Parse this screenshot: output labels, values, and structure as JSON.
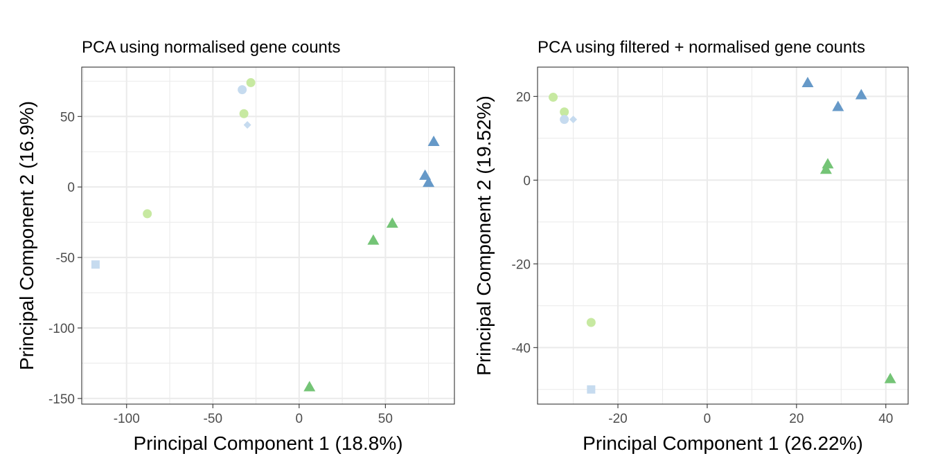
{
  "chart_data": [
    {
      "type": "scatter",
      "title": "PCA using normalised gene counts",
      "xlabel": "Principal Component 1 (18.8%)",
      "ylabel": "Principal Component 2 (16.9%)",
      "xlim": [
        -126,
        90
      ],
      "ylim": [
        -154,
        85
      ],
      "xticks": [
        -100,
        -50,
        0,
        50
      ],
      "yticks": [
        -150,
        -100,
        -50,
        0,
        50
      ],
      "xtick_labels": [
        "-100",
        "-50",
        "0",
        "50"
      ],
      "ytick_labels": [
        "-150",
        "-100",
        "-50",
        "0",
        "50"
      ],
      "grid": true,
      "points": [
        {
          "x": -33,
          "y": 69,
          "shape": "circle",
          "color": "#c6dbef"
        },
        {
          "x": -28,
          "y": 74,
          "shape": "circle",
          "color": "#c7e9a1"
        },
        {
          "x": -32,
          "y": 52,
          "shape": "circle",
          "color": "#c7e9a1"
        },
        {
          "x": -30,
          "y": 44,
          "shape": "diamond",
          "color": "#c6dbef"
        },
        {
          "x": -88,
          "y": -19,
          "shape": "circle",
          "color": "#c7e9a1"
        },
        {
          "x": -118,
          "y": -55,
          "shape": "square",
          "color": "#c6dbef"
        },
        {
          "x": 78,
          "y": 32,
          "shape": "triangle",
          "color": "#6699c8"
        },
        {
          "x": 73,
          "y": 8,
          "shape": "triangle",
          "color": "#6699c8"
        },
        {
          "x": 75,
          "y": 3,
          "shape": "triangle",
          "color": "#6699c8"
        },
        {
          "x": 54,
          "y": -26,
          "shape": "triangle",
          "color": "#74c476"
        },
        {
          "x": 43,
          "y": -38,
          "shape": "triangle",
          "color": "#74c476"
        },
        {
          "x": 6,
          "y": -142,
          "shape": "triangle",
          "color": "#74c476"
        }
      ]
    },
    {
      "type": "scatter",
      "title": "PCA using filtered + normalised gene counts",
      "xlabel": "Principal Component 1 (26.22%)",
      "ylabel": "Principal Component 2 (19.52%)",
      "xlim": [
        -38,
        45
      ],
      "ylim": [
        -53.5,
        27
      ],
      "xticks": [
        -20,
        0,
        20,
        40
      ],
      "yticks": [
        -40,
        -20,
        0,
        20
      ],
      "xtick_labels": [
        "-20",
        "0",
        "20",
        "40"
      ],
      "ytick_labels": [
        "-40",
        "-20",
        "0",
        "20"
      ],
      "grid": true,
      "points": [
        {
          "x": -34.5,
          "y": 19.8,
          "shape": "circle",
          "color": "#c7e9a1"
        },
        {
          "x": -32,
          "y": 16.3,
          "shape": "circle",
          "color": "#c7e9a1"
        },
        {
          "x": -32,
          "y": 14.5,
          "shape": "circle",
          "color": "#c6dbef"
        },
        {
          "x": -30,
          "y": 14.5,
          "shape": "diamond",
          "color": "#c6dbef"
        },
        {
          "x": -26,
          "y": -34,
          "shape": "circle",
          "color": "#c7e9a1"
        },
        {
          "x": -26,
          "y": -50,
          "shape": "square",
          "color": "#c6dbef"
        },
        {
          "x": 22.5,
          "y": 23.2,
          "shape": "triangle",
          "color": "#6699c8"
        },
        {
          "x": 34.5,
          "y": 20.3,
          "shape": "triangle",
          "color": "#6699c8"
        },
        {
          "x": 29.3,
          "y": 17.5,
          "shape": "triangle",
          "color": "#6699c8"
        },
        {
          "x": 27,
          "y": 3.8,
          "shape": "triangle",
          "color": "#74c476"
        },
        {
          "x": 26.6,
          "y": 2.5,
          "shape": "triangle",
          "color": "#74c476"
        },
        {
          "x": 41,
          "y": -47.5,
          "shape": "triangle",
          "color": "#74c476"
        }
      ]
    }
  ]
}
